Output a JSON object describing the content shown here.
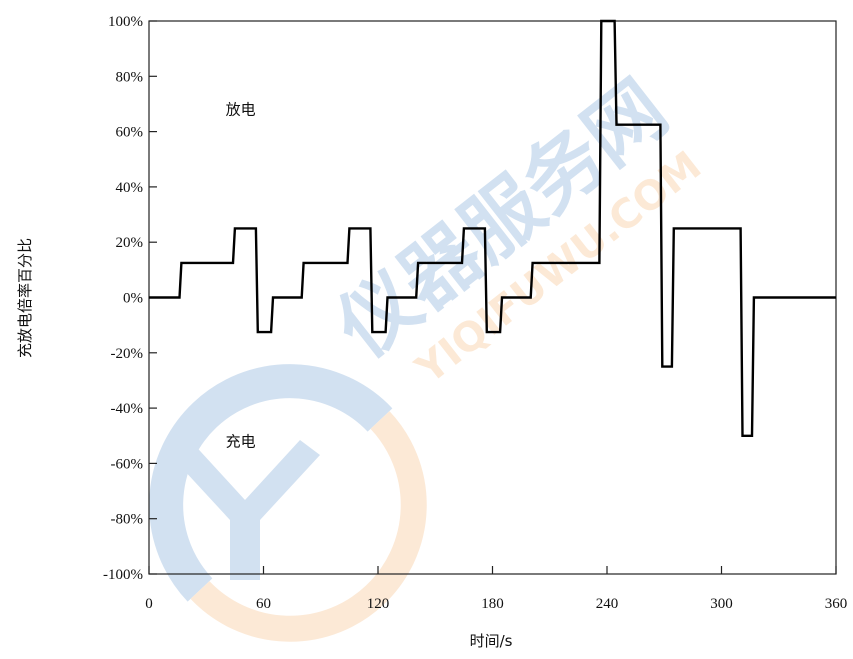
{
  "chart_data": {
    "type": "line",
    "title": "",
    "xlabel": "时间/s",
    "ylabel": "充放电倍率百分比",
    "xlim": [
      0,
      360
    ],
    "ylim": [
      -100,
      100
    ],
    "x_ticks": [
      0,
      60,
      120,
      180,
      240,
      300,
      360
    ],
    "x_tick_labels": [
      "0",
      "60",
      "120",
      "180",
      "240",
      "300",
      "360"
    ],
    "y_ticks": [
      -100,
      -80,
      -60,
      -40,
      -20,
      0,
      20,
      40,
      60,
      80,
      100
    ],
    "y_tick_labels": [
      "-100%",
      "-80%",
      "-60%",
      "-40%",
      "-20%",
      "0%",
      "20%",
      "40%",
      "60%",
      "80%",
      "100%"
    ],
    "grid": false,
    "annotations": [
      {
        "text": "放电",
        "x": 48,
        "y": 68
      },
      {
        "text": "充电",
        "x": 48,
        "y": -52
      }
    ],
    "series": [
      {
        "x": [
          0,
          16,
          17,
          44,
          45,
          56,
          57,
          64,
          65,
          80,
          81,
          104,
          105,
          116,
          117,
          124,
          125,
          140,
          141,
          164,
          165,
          176,
          177,
          184,
          185,
          200,
          201,
          236,
          237,
          244,
          245,
          266,
          267,
          268,
          269,
          274,
          275,
          308,
          309,
          310,
          311,
          316,
          317,
          360
        ],
        "y": [
          0,
          0,
          12.5,
          12.5,
          25,
          25,
          -12.5,
          -12.5,
          0,
          0,
          12.5,
          12.5,
          25,
          25,
          -12.5,
          -12.5,
          0,
          0,
          12.5,
          12.5,
          25,
          25,
          -12.5,
          -12.5,
          0,
          0,
          12.5,
          12.5,
          100,
          100,
          62.5,
          62.5,
          62.5,
          62.5,
          -25,
          -25,
          25,
          25,
          25,
          25,
          -50,
          -50,
          0,
          0
        ]
      }
    ]
  },
  "watermark": {
    "cn": "仪器服务网",
    "en": "YIQIFUWU.COM"
  }
}
